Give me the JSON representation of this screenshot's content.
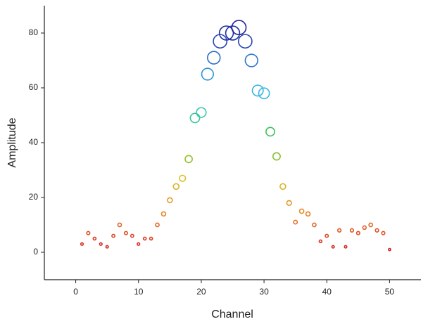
{
  "chart_data": {
    "type": "scatter",
    "x_label": "Channel",
    "y_label": "Amplitude",
    "x": [
      1,
      2,
      3,
      4,
      5,
      6,
      7,
      8,
      9,
      10,
      11,
      12,
      13,
      14,
      15,
      16,
      17,
      18,
      19,
      20,
      21,
      22,
      23,
      24,
      25,
      26,
      27,
      28,
      29,
      30,
      31,
      32,
      33,
      34,
      35,
      36,
      37,
      38,
      39,
      40,
      41,
      42,
      43,
      44,
      45,
      46,
      47,
      48,
      49,
      50
    ],
    "values": [
      3,
      7,
      5,
      3,
      2,
      6,
      10,
      7,
      6,
      3,
      5,
      5,
      10,
      14,
      19,
      24,
      27,
      34,
      49,
      51,
      65,
      71,
      77,
      80,
      80,
      82,
      77,
      70,
      59,
      58,
      44,
      35,
      24,
      18,
      11,
      15,
      14,
      10,
      4,
      6,
      2,
      8,
      2,
      8,
      7,
      9,
      10,
      8,
      7,
      1
    ],
    "colors": [
      "#d41f1f",
      "#e8892a",
      "#d8c428",
      "#3cc03a",
      "#3cc8e8",
      "#2f7fd0",
      "#23239c"
    ],
    "xlim": [
      -5,
      55
    ],
    "ylim": [
      -10,
      90
    ],
    "xticks": [
      0,
      10,
      20,
      30,
      40,
      50
    ],
    "yticks": [
      0,
      20,
      40,
      60,
      80
    ]
  }
}
